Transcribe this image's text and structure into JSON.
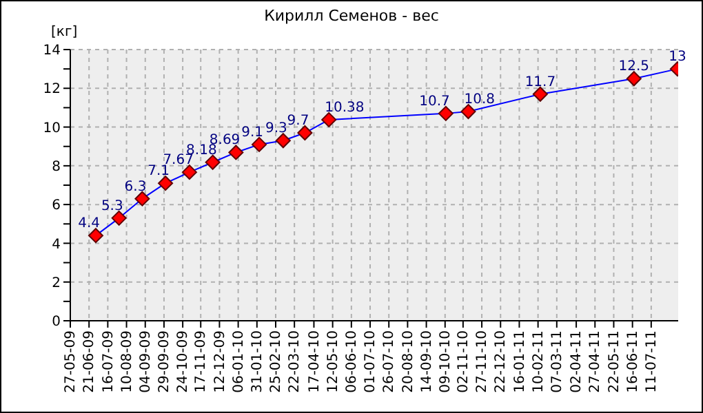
{
  "chart_data": {
    "type": "line",
    "title": "Кирилл Семенов - вес",
    "ylabel": "[кг]",
    "x": [
      "2009-06-30",
      "2009-07-31",
      "2009-08-31",
      "2009-10-01",
      "2009-11-02",
      "2009-12-03",
      "2010-01-03",
      "2010-02-03",
      "2010-03-07",
      "2010-04-05",
      "2010-05-07",
      "2010-10-10",
      "2010-11-09",
      "2011-02-13",
      "2011-06-18",
      "2011-08-15"
    ],
    "series": [
      {
        "color": "#0000ff",
        "values": [
          4.4,
          5.3,
          6.3,
          7.1,
          7.67,
          8.18,
          8.69,
          9.1,
          9.3,
          9.7,
          10.38,
          10.7,
          10.8,
          11.7,
          12.5,
          13
        ]
      }
    ],
    "data_labels": true,
    "marker": "diamond",
    "grid": true,
    "line_style": "solid",
    "xlim": [
      "2009-05-27",
      "2011-08-16"
    ],
    "xticks": [
      {
        "value": "2009-05-27",
        "label": "27-05-09"
      },
      {
        "value": "2009-06-21",
        "label": "21-06-09"
      },
      {
        "value": "2009-07-16",
        "label": "16-07-09"
      },
      {
        "value": "2009-08-10",
        "label": "10-08-09"
      },
      {
        "value": "2009-09-04",
        "label": "04-09-09"
      },
      {
        "value": "2009-09-29",
        "label": "29-09-09"
      },
      {
        "value": "2009-10-24",
        "label": "24-10-09"
      },
      {
        "value": "2009-11-17",
        "label": "17-11-09"
      },
      {
        "value": "2009-12-12",
        "label": "12-12-09"
      },
      {
        "value": "2010-01-06",
        "label": "06-01-10"
      },
      {
        "value": "2010-01-31",
        "label": "31-01-10"
      },
      {
        "value": "2010-02-25",
        "label": "25-02-10"
      },
      {
        "value": "2010-03-22",
        "label": "22-03-10"
      },
      {
        "value": "2010-04-17",
        "label": "17-04-10"
      },
      {
        "value": "2010-05-12",
        "label": "12-05-10"
      },
      {
        "value": "2010-06-06",
        "label": "06-06-10"
      },
      {
        "value": "2010-07-01",
        "label": "01-07-10"
      },
      {
        "value": "2010-07-26",
        "label": "26-07-10"
      },
      {
        "value": "2010-08-20",
        "label": "20-08-10"
      },
      {
        "value": "2010-09-14",
        "label": "14-09-10"
      },
      {
        "value": "2010-10-09",
        "label": "09-10-10"
      },
      {
        "value": "2010-11-02",
        "label": "02-11-10"
      },
      {
        "value": "2010-11-27",
        "label": "27-11-10"
      },
      {
        "value": "2010-12-22",
        "label": "22-12-10"
      },
      {
        "value": "2011-01-16",
        "label": "16-01-11"
      },
      {
        "value": "2011-02-10",
        "label": "10-02-11"
      },
      {
        "value": "2011-03-07",
        "label": "07-03-11"
      },
      {
        "value": "2011-04-02",
        "label": "02-04-11"
      },
      {
        "value": "2011-04-27",
        "label": "27-04-11"
      },
      {
        "value": "2011-05-22",
        "label": "22-05-11"
      },
      {
        "value": "2011-06-16",
        "label": "16-06-11"
      },
      {
        "value": "2011-07-11",
        "label": "11-07-11"
      }
    ],
    "ylim": [
      0,
      14
    ],
    "yticks": [
      0,
      {
        "value": 1,
        "label": null
      },
      2,
      {
        "value": 3,
        "label": null
      },
      4,
      {
        "value": 5,
        "label": null
      },
      6,
      {
        "value": 7,
        "label": null
      },
      8,
      {
        "value": 9,
        "label": null
      },
      10,
      {
        "value": 11,
        "label": null
      },
      12,
      {
        "value": 13,
        "label": null
      },
      14
    ]
  }
}
